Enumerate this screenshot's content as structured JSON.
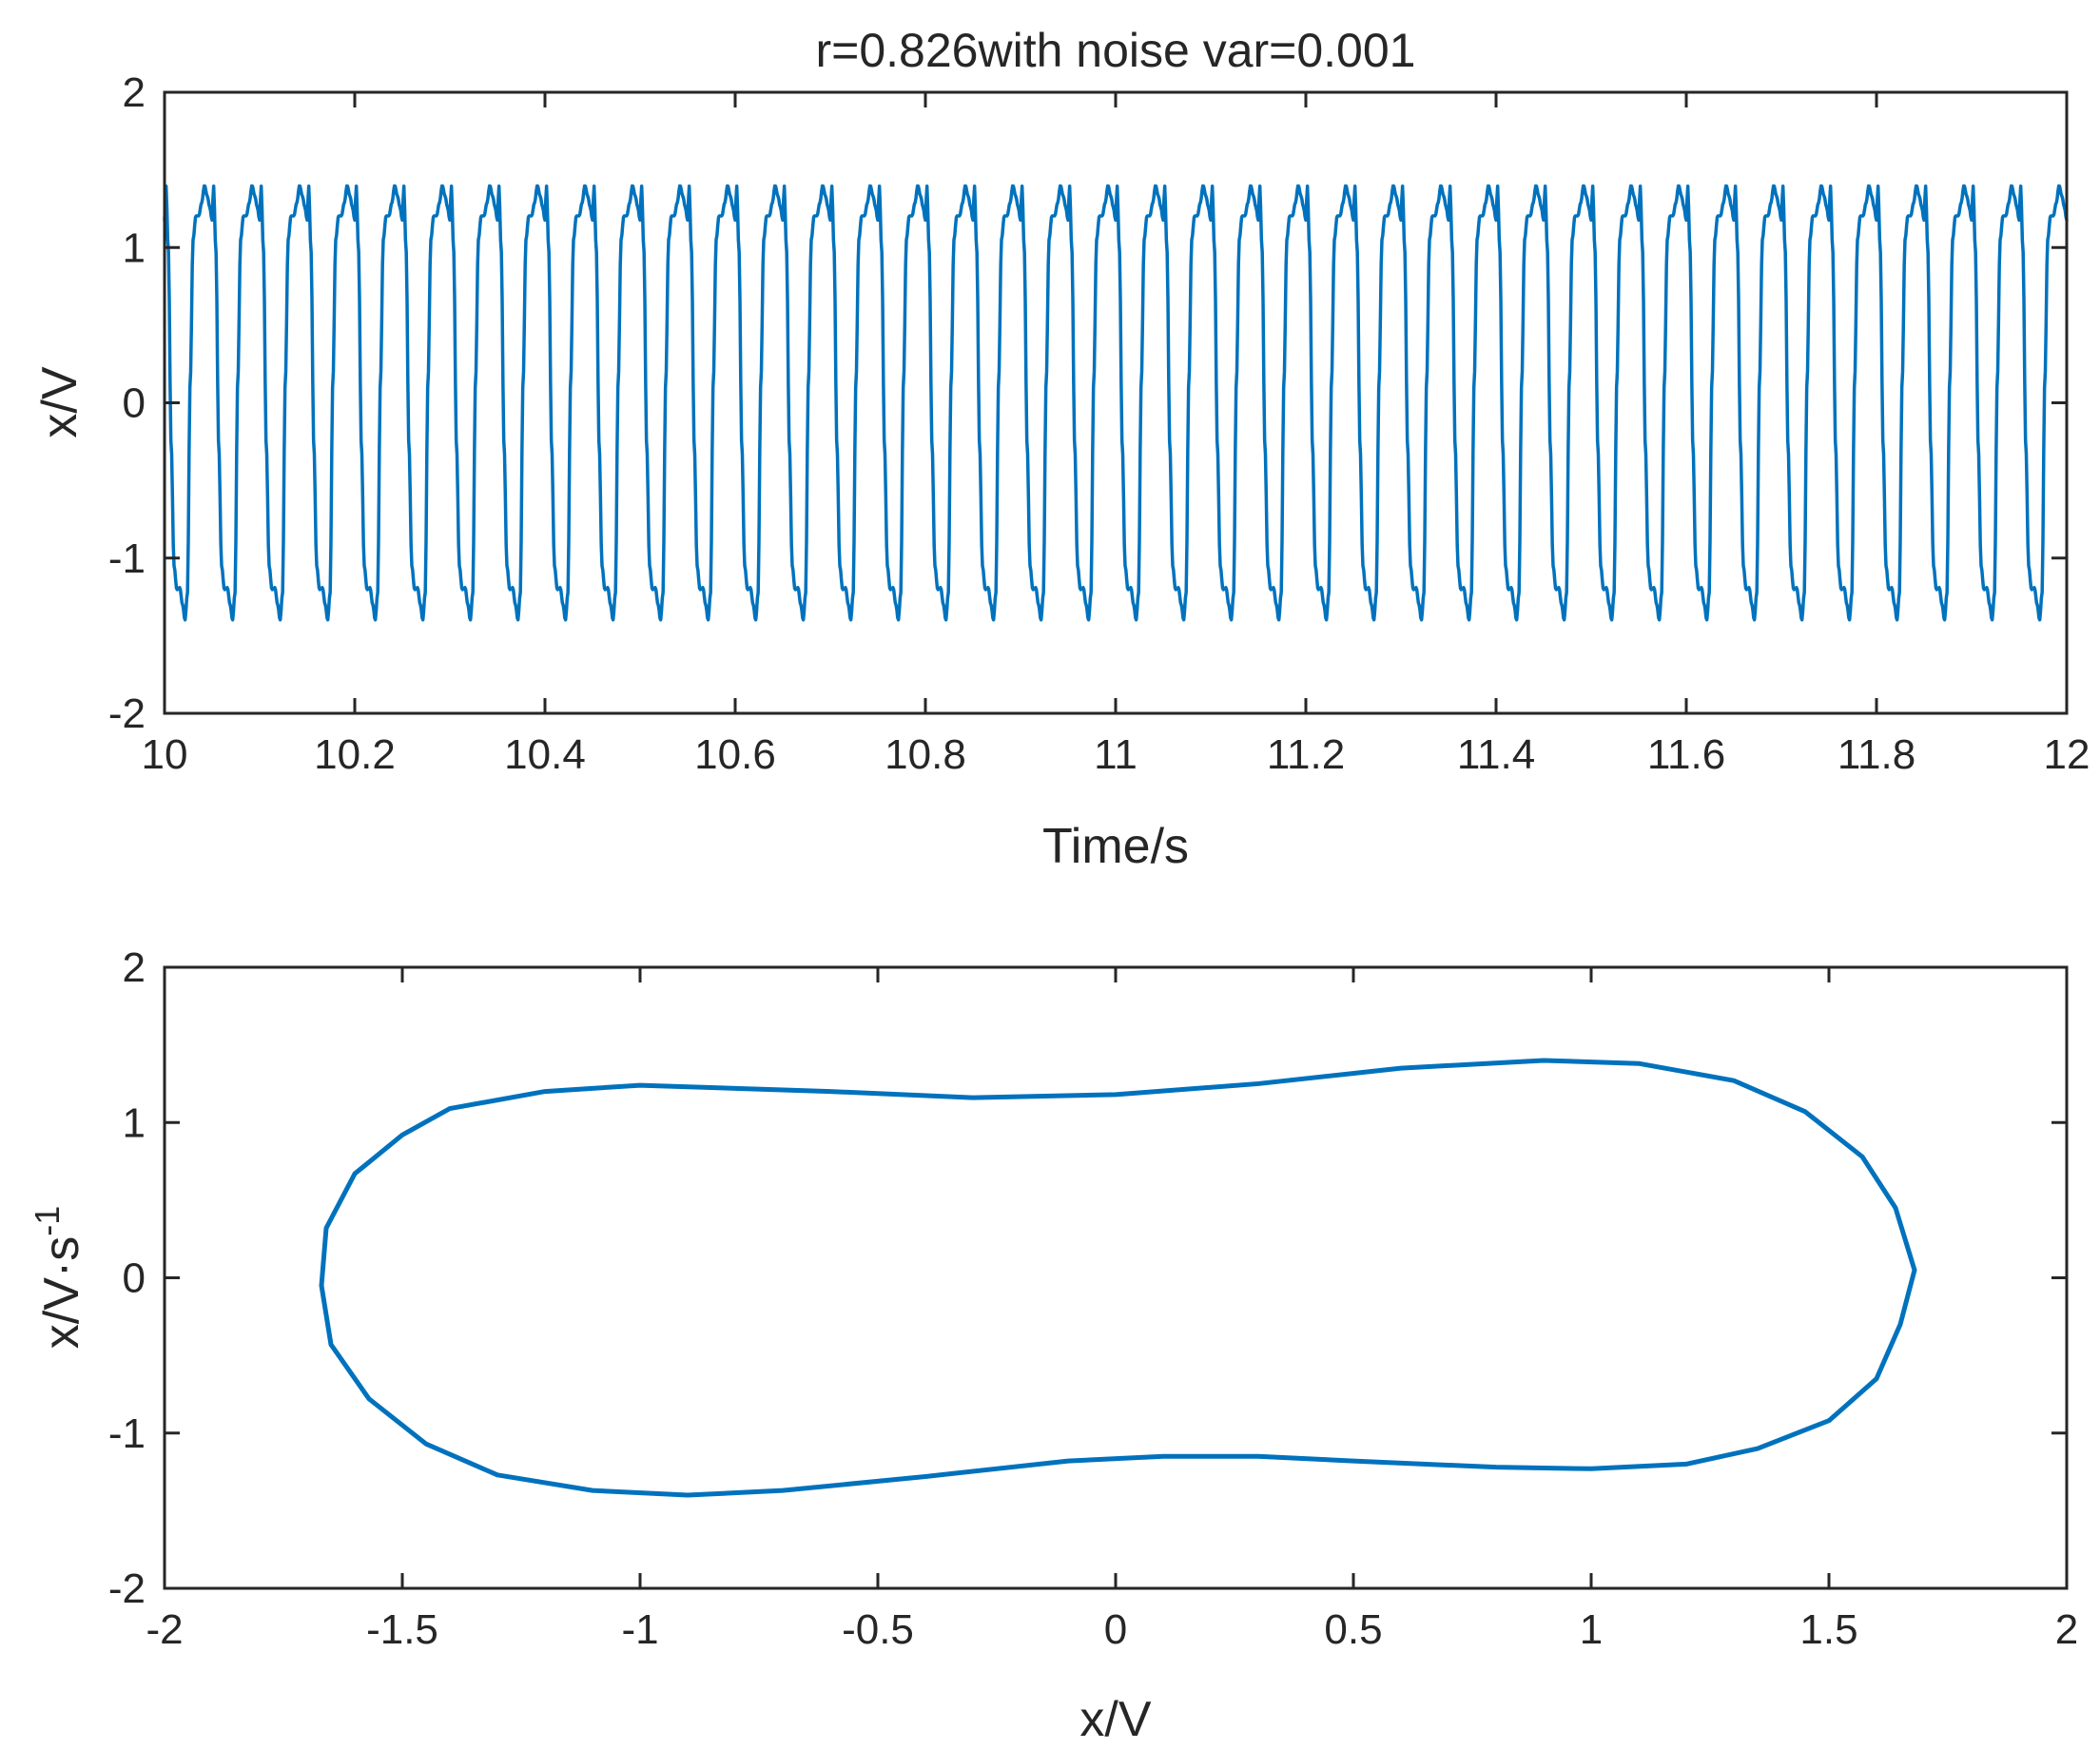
{
  "chart_data": [
    {
      "type": "line",
      "title": "r=0.826with noise var=0.001",
      "xlabel": "Time/s",
      "ylabel": "x/V",
      "xlim": [
        10,
        12
      ],
      "ylim": [
        -2,
        2
      ],
      "xticks": [
        10,
        10.2,
        10.4,
        10.6,
        10.8,
        11,
        11.2,
        11.4,
        11.6,
        11.8,
        12
      ],
      "xtick_labels": [
        "10",
        "10.2",
        "10.4",
        "10.6",
        "10.8",
        "11",
        "11.2",
        "11.4",
        "11.6",
        "11.8",
        "12"
      ],
      "yticks": [
        -2,
        -1,
        0,
        1,
        2
      ],
      "ytick_labels": [
        "-2",
        "-1",
        "0",
        "1",
        "2"
      ],
      "grid": false,
      "series": [
        {
          "color": "#0072BD",
          "waveform": "periodic",
          "x_start": 10.0,
          "x_end": 12.0,
          "period_s": 0.05,
          "cycles": 40,
          "peak": 1.4,
          "trough": -1.4,
          "shoulder": 1.2,
          "x_at_start": 1.2,
          "x_at_end": 1.2
        }
      ]
    },
    {
      "type": "line",
      "title": "",
      "xlabel": "x/V",
      "ylabel_main": "x/V·s",
      "ylabel_sup": "-1",
      "xlim": [
        -2,
        2
      ],
      "ylim": [
        -2,
        2
      ],
      "xticks": [
        -2,
        -1.5,
        -1,
        -0.5,
        0,
        0.5,
        1,
        1.5,
        2
      ],
      "xtick_labels": [
        "-2",
        "-1.5",
        "-1",
        "-0.5",
        "0",
        "0.5",
        "1",
        "1.5",
        "2"
      ],
      "yticks": [
        -2,
        -1,
        0,
        1,
        2
      ],
      "ytick_labels": [
        "-2",
        "-1",
        "0",
        "1",
        "2"
      ],
      "grid": false,
      "series": [
        {
          "color": "#0072BD",
          "closed": true,
          "points": [
            [
              -1.67,
              -0.05
            ],
            [
              -1.66,
              0.32
            ],
            [
              -1.6,
              0.67
            ],
            [
              -1.5,
              0.92
            ],
            [
              -1.4,
              1.09
            ],
            [
              -1.2,
              1.2
            ],
            [
              -1.0,
              1.24
            ],
            [
              -0.6,
              1.2
            ],
            [
              -0.3,
              1.16
            ],
            [
              0.0,
              1.18
            ],
            [
              0.3,
              1.25
            ],
            [
              0.6,
              1.35
            ],
            [
              0.9,
              1.4
            ],
            [
              1.1,
              1.38
            ],
            [
              1.3,
              1.27
            ],
            [
              1.45,
              1.07
            ],
            [
              1.57,
              0.78
            ],
            [
              1.64,
              0.45
            ],
            [
              1.68,
              0.05
            ],
            [
              1.65,
              -0.3
            ],
            [
              1.6,
              -0.65
            ],
            [
              1.5,
              -0.92
            ],
            [
              1.35,
              -1.1
            ],
            [
              1.2,
              -1.2
            ],
            [
              1.0,
              -1.23
            ],
            [
              0.8,
              -1.22
            ],
            [
              0.5,
              -1.18
            ],
            [
              0.3,
              -1.15
            ],
            [
              0.1,
              -1.15
            ],
            [
              -0.1,
              -1.18
            ],
            [
              -0.4,
              -1.28
            ],
            [
              -0.7,
              -1.37
            ],
            [
              -0.9,
              -1.4
            ],
            [
              -1.1,
              -1.37
            ],
            [
              -1.3,
              -1.27
            ],
            [
              -1.45,
              -1.07
            ],
            [
              -1.57,
              -0.78
            ],
            [
              -1.65,
              -0.43
            ]
          ]
        }
      ]
    }
  ]
}
